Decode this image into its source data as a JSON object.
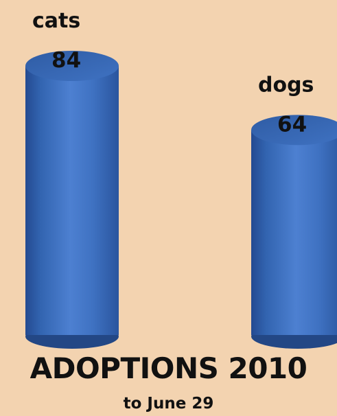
{
  "chart_data": {
    "type": "bar",
    "categories": [
      "cats",
      "dogs"
    ],
    "values": [
      84,
      64
    ],
    "title": "ADOPTIONS 2010",
    "subtitle": "to June 29",
    "grid": false,
    "legend": "none",
    "colors": {
      "background": "#f3d3b0",
      "bar": "#3f70bf",
      "bar_dark": "#24498d",
      "bar_light": "#5f8fdc",
      "text": "#111111"
    }
  }
}
